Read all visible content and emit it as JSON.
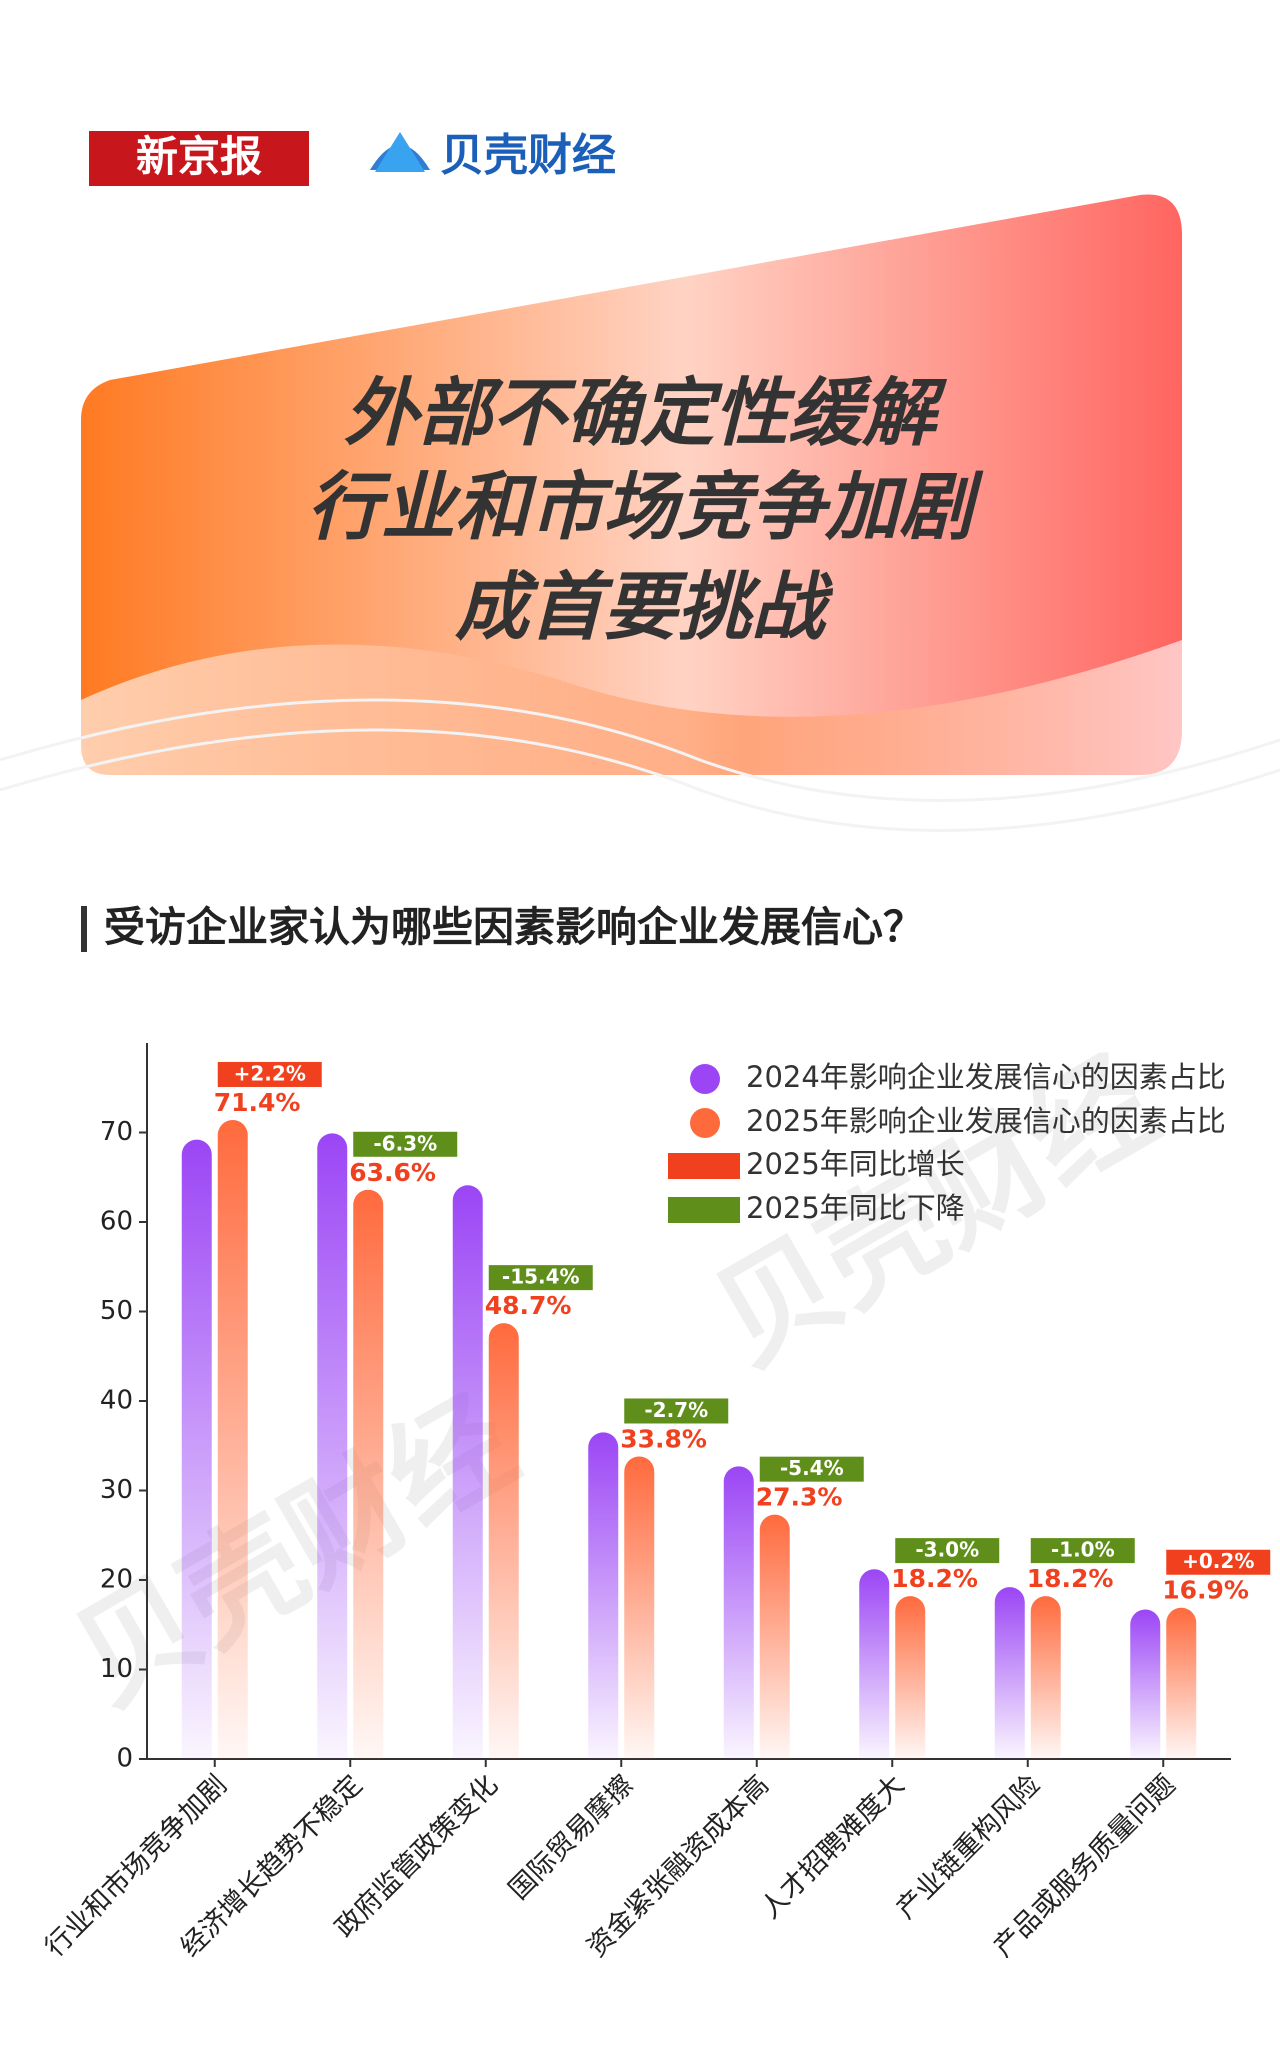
{
  "header": {
    "logo_left": "新京报",
    "logo_right": "贝壳财经"
  },
  "title_lines": [
    "外部不确定性缓解",
    "行业和市场竞争加剧",
    "成首要挑战"
  ],
  "chart_data": {
    "type": "bar",
    "title": "受访企业家认为哪些因素影响企业发展信心？",
    "categories": [
      "行业和市场竞争加剧",
      "经济增长趋势不稳定",
      "政府监管政策变化",
      "国际贸易摩擦",
      "资金紧张融资成本高",
      "人才招聘难度大",
      "产业链重构风险",
      "产品或服务质量问题"
    ],
    "series": [
      {
        "name": "2024年影响企业发展信心的因素占比",
        "color": "#9b45f5",
        "values": [
          69.2,
          69.9,
          64.1,
          36.5,
          32.7,
          21.2,
          19.2,
          16.7
        ]
      },
      {
        "name": "2025年影响企业发展信心的因素占比",
        "color": "#ff6a3d",
        "values": [
          71.4,
          63.6,
          48.7,
          33.8,
          27.3,
          18.2,
          18.2,
          16.9
        ],
        "value_labels": [
          "71.4%",
          "63.6%",
          "48.7%",
          "33.8%",
          "27.3%",
          "18.2%",
          "18.2%",
          "16.9%"
        ]
      }
    ],
    "changes": {
      "values": [
        2.2,
        -6.3,
        -15.4,
        -2.7,
        -5.4,
        -3.0,
        -1.0,
        0.2
      ],
      "value_labels": [
        "+2.2%",
        "-6.3%",
        "-15.4%",
        "-2.7%",
        "-5.4%",
        "-3.0%",
        "-1.0%",
        "+0.2%"
      ]
    },
    "increase_legend": {
      "name": "2025年同比增长",
      "color": "#f0401e"
    },
    "decrease_legend": {
      "name": "2025年同比下降",
      "color": "#5f8f1a"
    },
    "ylim": [
      0,
      80
    ],
    "yticks": [
      0,
      10,
      20,
      30,
      40,
      50,
      60,
      70
    ],
    "watermark": "贝壳财经"
  }
}
